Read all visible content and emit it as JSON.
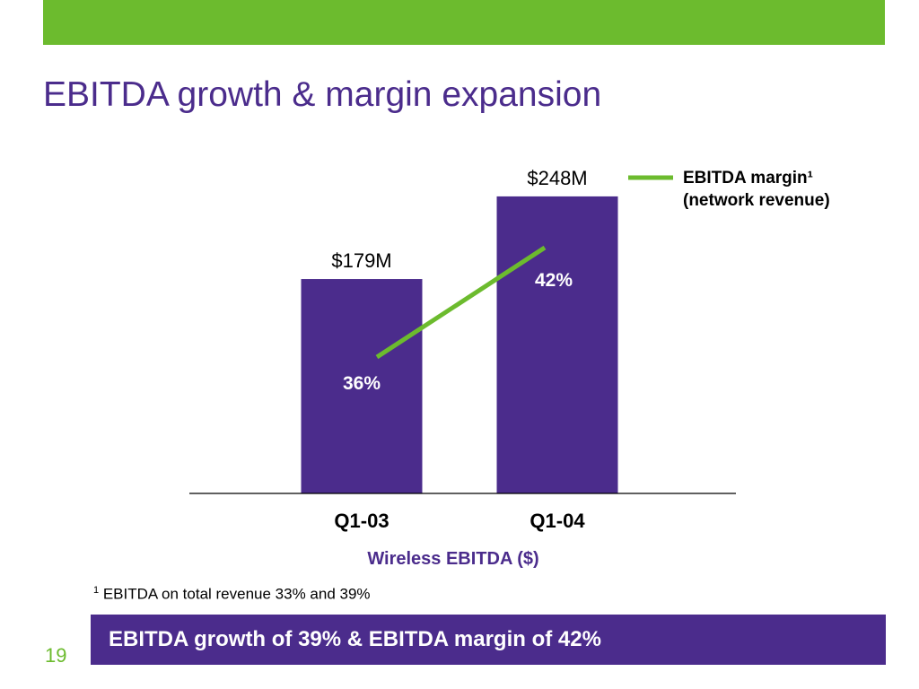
{
  "slide": {
    "title": "EBITDA growth & margin expansion",
    "page_number": "19",
    "banner": "EBITDA growth of 39% & EBITDA margin of 42%",
    "footnote_marker": "1",
    "footnote": " EBITDA on total revenue 33% and 39%"
  },
  "colors": {
    "bar": "#4b2c8c",
    "line": "#6cbb2e",
    "accent_bar": "#6cbb2e"
  },
  "chart_data": {
    "type": "bar",
    "categories": [
      "Q1-03",
      "Q1-04"
    ],
    "series": [
      {
        "values": [
          179,
          248
        ],
        "labels": [
          "$179M",
          "$248M"
        ]
      },
      {
        "name": "EBITDA margin¹ (network revenue)",
        "type": "line",
        "values": [
          36,
          42
        ],
        "labels": [
          "36%",
          "42%"
        ]
      }
    ],
    "xlabel": "Wireless EBITDA ($)",
    "legend": {
      "line1": "EBITDA margin¹",
      "line2": "(network revenue)"
    }
  }
}
